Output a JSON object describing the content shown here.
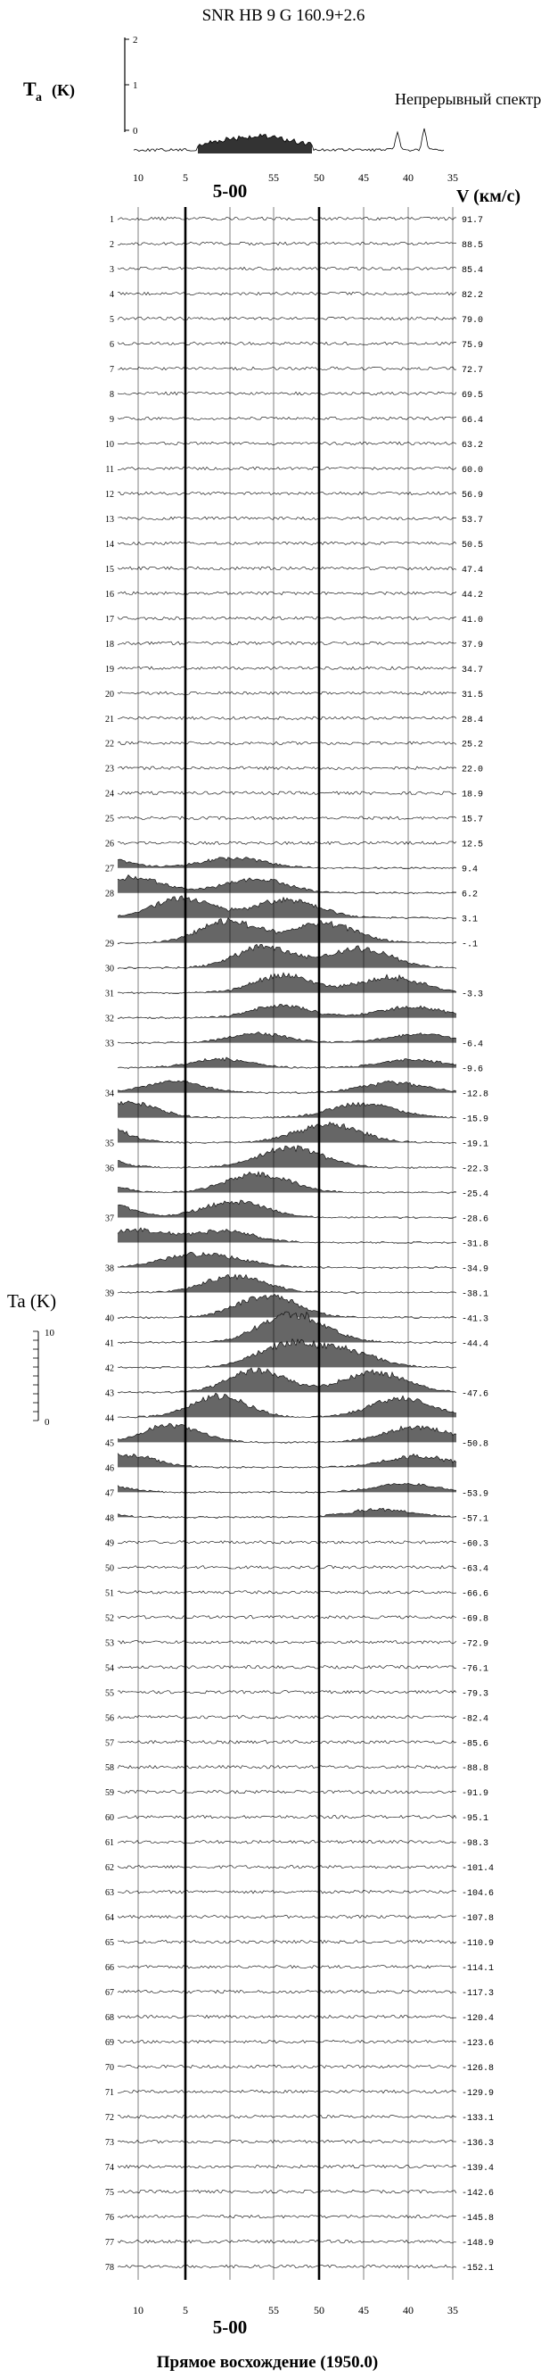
{
  "chart_data": {
    "type": "line",
    "title": "SNR  HB 9   G 160.9+2.6",
    "top_panel": {
      "ylabel_main": "T",
      "ylabel_sub": "a",
      "ylabel_unit": "(K)",
      "y_ticks": [
        "2",
        "1",
        "0"
      ],
      "label": "Непрерывный спектр"
    },
    "ra_ticks": [
      "10",
      "5",
      "55",
      "50",
      "45",
      "40",
      "35"
    ],
    "ra_center_label": "5-00",
    "velocity_axis_label": "V (км/с)",
    "scale_bar": {
      "label": "Ta  (K)",
      "ticks": [
        "10",
        "0"
      ]
    },
    "xlabel": "Прямое восхождение (1950.0)",
    "rows": [
      {
        "n": "1",
        "v": "91.7"
      },
      {
        "n": "2",
        "v": "88.5"
      },
      {
        "n": "3",
        "v": "85.4"
      },
      {
        "n": "4",
        "v": "82.2"
      },
      {
        "n": "5",
        "v": "79.0"
      },
      {
        "n": "6",
        "v": "75.9"
      },
      {
        "n": "7",
        "v": "72.7"
      },
      {
        "n": "8",
        "v": "69.5"
      },
      {
        "n": "9",
        "v": "66.4"
      },
      {
        "n": "10",
        "v": "63.2"
      },
      {
        "n": "11",
        "v": "60.0"
      },
      {
        "n": "12",
        "v": "56.9"
      },
      {
        "n": "13",
        "v": "53.7"
      },
      {
        "n": "14",
        "v": "50.5"
      },
      {
        "n": "15",
        "v": "47.4"
      },
      {
        "n": "16",
        "v": "44.2"
      },
      {
        "n": "17",
        "v": "41.0"
      },
      {
        "n": "18",
        "v": "37.9"
      },
      {
        "n": "19",
        "v": "34.7"
      },
      {
        "n": "20",
        "v": "31.5"
      },
      {
        "n": "21",
        "v": "28.4"
      },
      {
        "n": "22",
        "v": "25.2"
      },
      {
        "n": "23",
        "v": "22.0"
      },
      {
        "n": "24",
        "v": "18.9"
      },
      {
        "n": "25",
        "v": "15.7"
      },
      {
        "n": "26",
        "v": "12.5"
      },
      {
        "n": "27",
        "v": "9.4"
      },
      {
        "n": "28",
        "v": "6.2"
      },
      {
        "n": "",
        "v": "3.1"
      },
      {
        "n": "29",
        "v": "-.1"
      },
      {
        "n": "30",
        "v": ""
      },
      {
        "n": "31",
        "v": "-3.3"
      },
      {
        "n": "32",
        "v": ""
      },
      {
        "n": "33",
        "v": "-6.4"
      },
      {
        "n": "",
        "v": "-9.6"
      },
      {
        "n": "34",
        "v": "-12.8"
      },
      {
        "n": "",
        "v": "-15.9"
      },
      {
        "n": "35",
        "v": "-19.1"
      },
      {
        "n": "36",
        "v": "-22.3"
      },
      {
        "n": "",
        "v": "-25.4"
      },
      {
        "n": "37",
        "v": "-28.6"
      },
      {
        "n": "",
        "v": "-31.8"
      },
      {
        "n": "38",
        "v": "-34.9"
      },
      {
        "n": "39",
        "v": "-38.1"
      },
      {
        "n": "40",
        "v": "-41.3"
      },
      {
        "n": "41",
        "v": "-44.4"
      },
      {
        "n": "42",
        "v": ""
      },
      {
        "n": "43",
        "v": "-47.6"
      },
      {
        "n": "44",
        "v": ""
      },
      {
        "n": "45",
        "v": "-50.8"
      },
      {
        "n": "46",
        "v": ""
      },
      {
        "n": "47",
        "v": "-53.9"
      },
      {
        "n": "48",
        "v": "-57.1"
      },
      {
        "n": "49",
        "v": "-60.3"
      },
      {
        "n": "50",
        "v": "-63.4"
      },
      {
        "n": "51",
        "v": "-66.6"
      },
      {
        "n": "52",
        "v": "-69.8"
      },
      {
        "n": "53",
        "v": "-72.9"
      },
      {
        "n": "54",
        "v": "-76.1"
      },
      {
        "n": "55",
        "v": "-79.3"
      },
      {
        "n": "56",
        "v": "-82.4"
      },
      {
        "n": "57",
        "v": "-85.6"
      },
      {
        "n": "58",
        "v": "-88.8"
      },
      {
        "n": "59",
        "v": "-91.9"
      },
      {
        "n": "60",
        "v": "-95.1"
      },
      {
        "n": "61",
        "v": "-98.3"
      },
      {
        "n": "62",
        "v": "-101.4"
      },
      {
        "n": "63",
        "v": "-104.6"
      },
      {
        "n": "64",
        "v": "-107.8"
      },
      {
        "n": "65",
        "v": "-110.9"
      },
      {
        "n": "66",
        "v": "-114.1"
      },
      {
        "n": "67",
        "v": "-117.3"
      },
      {
        "n": "68",
        "v": "-120.4"
      },
      {
        "n": "69",
        "v": "-123.6"
      },
      {
        "n": "70",
        "v": "-126.8"
      },
      {
        "n": "71",
        "v": "-129.9"
      },
      {
        "n": "72",
        "v": "-133.1"
      },
      {
        "n": "73",
        "v": "-136.3"
      },
      {
        "n": "74",
        "v": "-139.4"
      },
      {
        "n": "75",
        "v": "-142.6"
      },
      {
        "n": "76",
        "v": "-145.8"
      },
      {
        "n": "77",
        "v": "-148.9"
      },
      {
        "n": "78",
        "v": "-152.1"
      }
    ]
  }
}
